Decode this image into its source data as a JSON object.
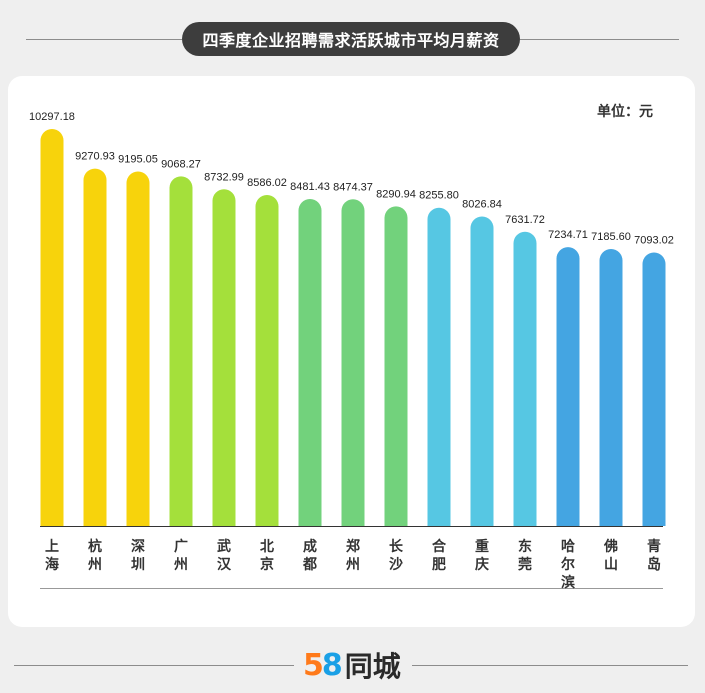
{
  "header": {
    "title": "四季度企业招聘需求活跃城市平均月薪资"
  },
  "unit_label": "单位：元",
  "footer": {
    "logo_5": "5",
    "logo_8": "8",
    "logo_brand": "同城"
  },
  "colors": {
    "yellow": "#f7d30c",
    "lime": "#a4e03b",
    "green": "#72d27c",
    "cyan": "#56c7e3",
    "blue": "#44a5e2"
  },
  "chart_data": {
    "type": "bar",
    "categories": [
      "上海",
      "杭州",
      "深圳",
      "广州",
      "武汉",
      "北京",
      "成都",
      "郑州",
      "长沙",
      "合肥",
      "重庆",
      "东莞",
      "哈尔滨",
      "佛山",
      "青岛"
    ],
    "values": [
      10297.18,
      9270.93,
      9195.05,
      9068.27,
      8732.99,
      8586.02,
      8481.43,
      8474.37,
      8290.94,
      8255.8,
      8026.84,
      7631.72,
      7234.71,
      7185.6,
      7093.02
    ],
    "value_labels": [
      "10297.18",
      "9270.93",
      "9195.05",
      "9068.27",
      "8732.99",
      "8586.02",
      "8481.43",
      "8474.37",
      "8290.94",
      "8255.80",
      "8026.84",
      "7631.72",
      "7234.71",
      "7185.60",
      "7093.02"
    ],
    "bar_colors": [
      "yellow",
      "yellow",
      "yellow",
      "lime",
      "lime",
      "lime",
      "green",
      "green",
      "green",
      "cyan",
      "cyan",
      "cyan",
      "blue",
      "blue",
      "blue"
    ],
    "ylim": [
      0,
      10297.18
    ],
    "grid": false,
    "legend": "none"
  }
}
